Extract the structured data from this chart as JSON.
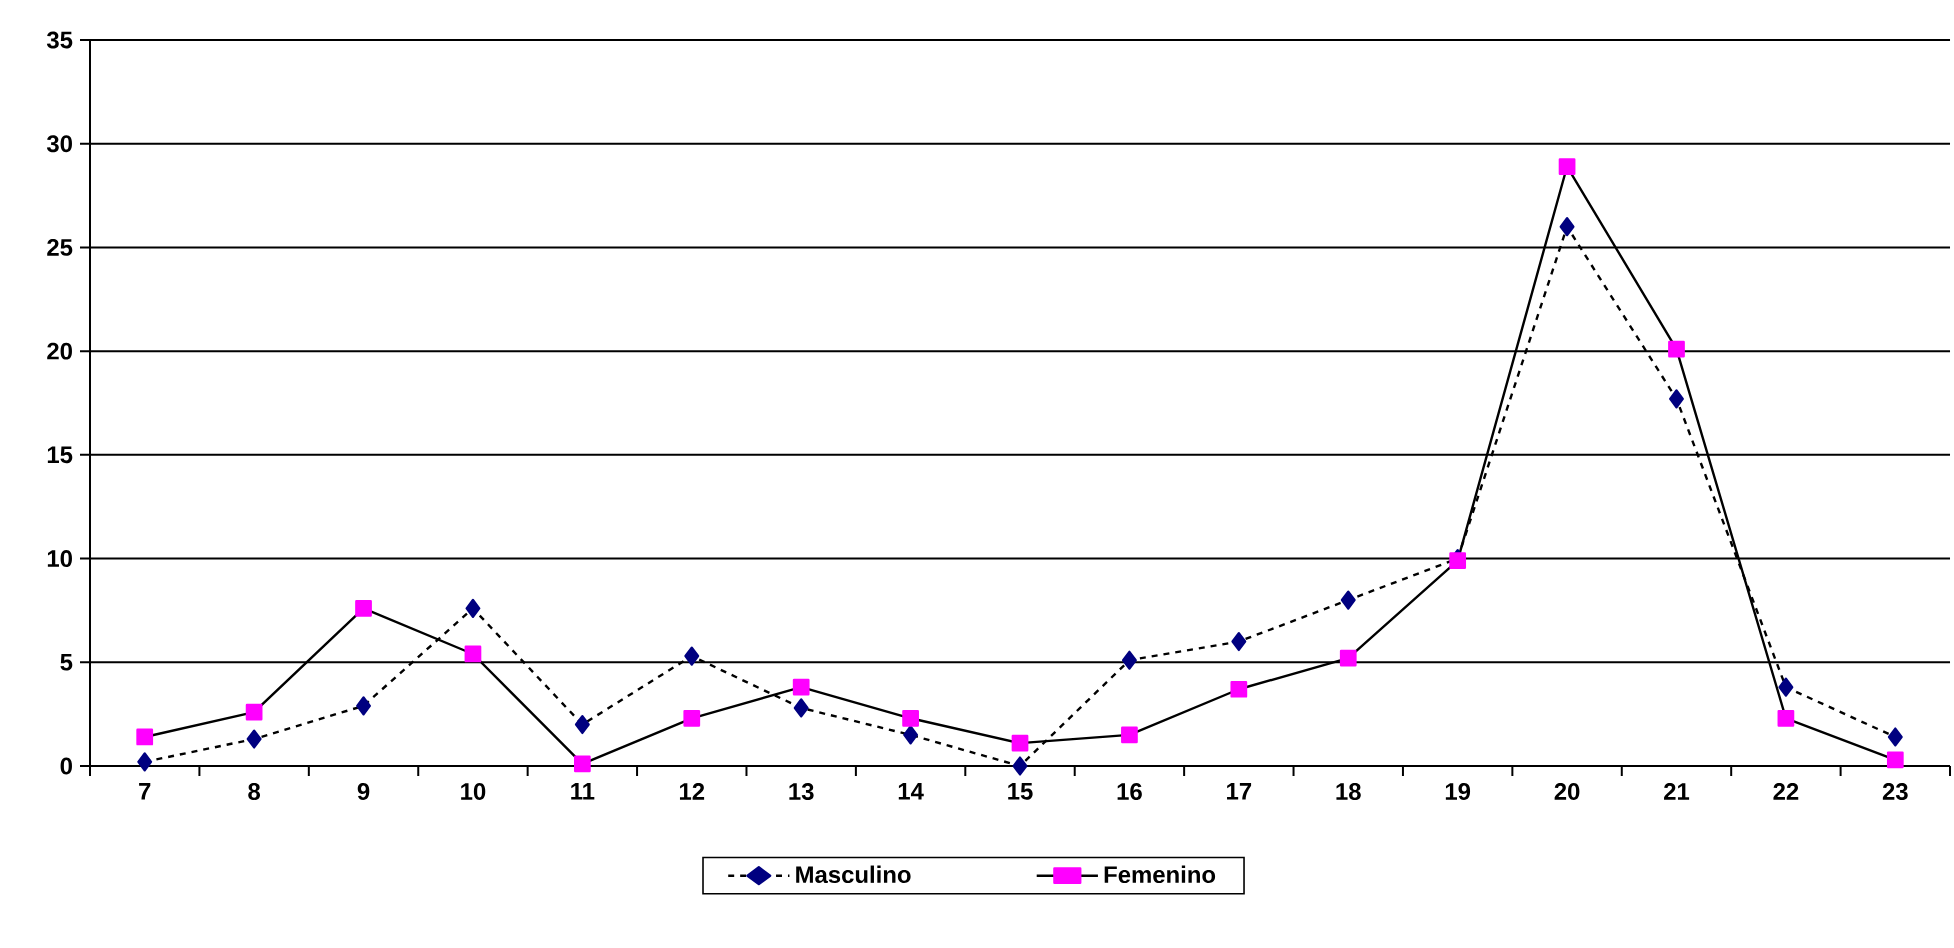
{
  "chart_data": {
    "type": "line",
    "categories": [
      "7",
      "8",
      "9",
      "10",
      "11",
      "12",
      "13",
      "14",
      "15",
      "16",
      "17",
      "18",
      "19",
      "20",
      "21",
      "22",
      "23"
    ],
    "series": [
      {
        "name": "Masculino",
        "color": "#000080",
        "marker": "diamond",
        "line_style": "dashed",
        "values": [
          0.2,
          1.3,
          2.9,
          7.6,
          2.0,
          5.3,
          2.8,
          1.5,
          0.0,
          5.1,
          6.0,
          8.0,
          10.0,
          26.0,
          17.7,
          3.8,
          1.4
        ]
      },
      {
        "name": "Femenino",
        "color": "#ff00ff",
        "marker": "square",
        "line_style": "solid",
        "values": [
          1.4,
          2.6,
          7.6,
          5.4,
          0.1,
          2.3,
          3.8,
          2.3,
          1.1,
          1.5,
          3.7,
          5.2,
          9.9,
          28.9,
          20.1,
          2.3,
          0.3
        ]
      }
    ],
    "ylim": [
      0,
      35
    ],
    "yticks": [
      0,
      5,
      10,
      15,
      20,
      25,
      30,
      35
    ],
    "grid": "y",
    "legend": "bottom"
  }
}
